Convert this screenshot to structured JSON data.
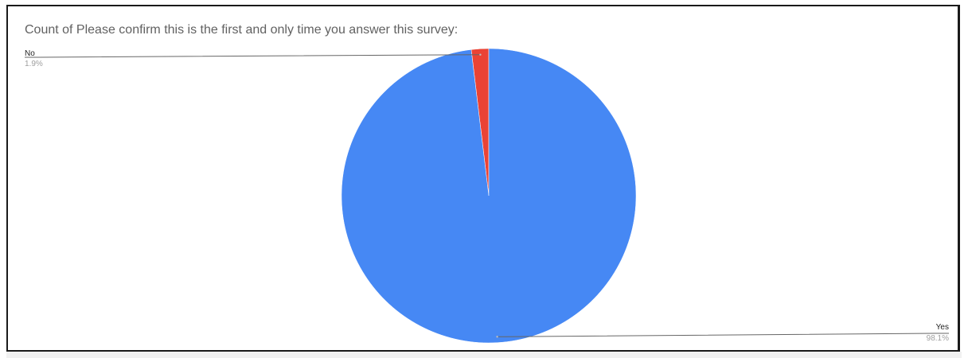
{
  "chart_data": {
    "type": "pie",
    "title": "Count of Please confirm this is the first and only time you answer this survey:",
    "slices": [
      {
        "label": "No",
        "percent_label": "1.9%",
        "value": 1.9,
        "color": "#ea4335"
      },
      {
        "label": "Yes",
        "percent_label": "98.1%",
        "value": 98.1,
        "color": "#4688f4"
      }
    ],
    "legend": "none"
  }
}
